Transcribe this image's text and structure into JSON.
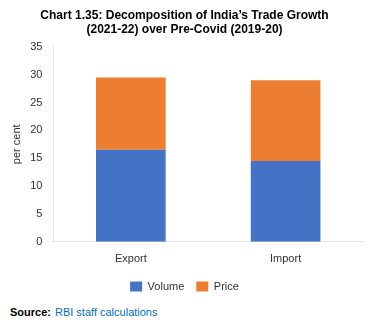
{
  "chart_data": {
    "type": "bar",
    "title": "Chart 1.35: Decomposition of India’s Trade Growth\n(2021-22) over Pre-Covid (2019-20)",
    "categories": [
      "Export",
      "Import"
    ],
    "series": [
      {
        "name": "Volume",
        "color": "#4472C4",
        "values": [
          16.5,
          14.5
        ]
      },
      {
        "name": "Price",
        "color": "#ED7D31",
        "values": [
          13.0,
          14.5
        ]
      }
    ],
    "stacked": true,
    "ylabel": "per cent",
    "ylim": [
      0,
      35
    ],
    "yticks": [
      0,
      5,
      10,
      15,
      20,
      25,
      30,
      35
    ],
    "grid": false,
    "legend": "bottom",
    "annotations": [
      {
        "text": "Source:"
      },
      {
        "text": "RBI staff calculations",
        "color": "#0070C0"
      }
    ]
  }
}
